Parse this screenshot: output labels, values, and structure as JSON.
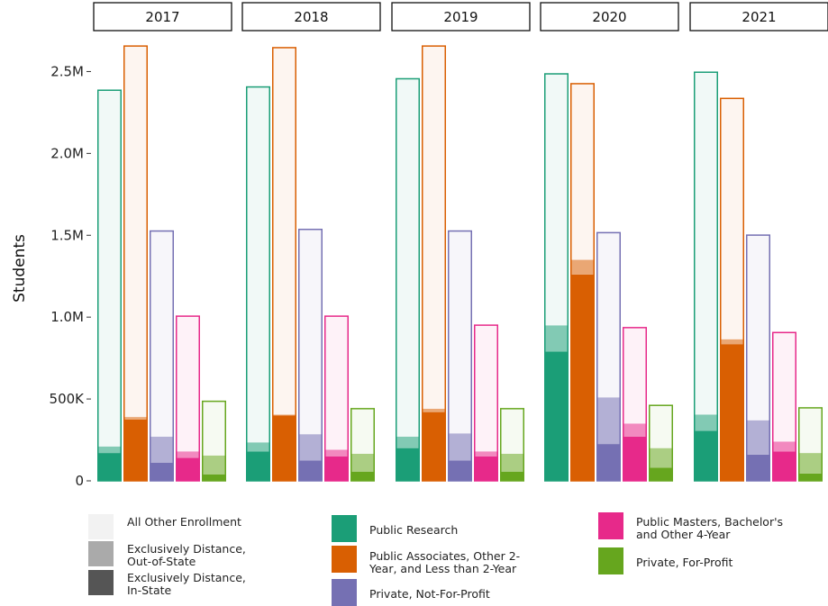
{
  "chart_data": {
    "type": "bar",
    "ylabel": "Students",
    "ylim": [
      0,
      2750000
    ],
    "yticks": [
      {
        "value": 0,
        "label": "0"
      },
      {
        "value": 500000,
        "label": "500K"
      },
      {
        "value": 1000000,
        "label": "1.0M"
      },
      {
        "value": 1500000,
        "label": "1.5M"
      },
      {
        "value": 2000000,
        "label": "2.0M"
      },
      {
        "value": 2500000,
        "label": "2.5M"
      }
    ],
    "facets": [
      "2017",
      "2018",
      "2019",
      "2020",
      "2021"
    ],
    "sectors": [
      {
        "name": "Public Research",
        "color": "#1b9e77"
      },
      {
        "name": "Public Associates, Other 2-Year, and Less than 2-Year",
        "color": "#d95f02"
      },
      {
        "name": "Private, Not-For-Profit",
        "color": "#7570b3"
      },
      {
        "name": "Public Masters, Bachelor's and Other 4-Year",
        "color": "#e7298a"
      },
      {
        "name": "Private, For-Profit",
        "color": "#66a61e"
      }
    ],
    "components": [
      {
        "name": "Exclusively Distance, In-State",
        "swatch": "#555555"
      },
      {
        "name": "Exclusively Distance, Out-of-State",
        "swatch": "#aaaaaa"
      },
      {
        "name": "All Other Enrollment",
        "swatch": "#f2f2f2"
      }
    ],
    "values": {
      "2017": [
        {
          "in_state": 170000,
          "out_of_state": 40000,
          "other": 2180000
        },
        {
          "in_state": 375000,
          "out_of_state": 15000,
          "other": 2270000
        },
        {
          "in_state": 110000,
          "out_of_state": 160000,
          "other": 1260000
        },
        {
          "in_state": 140000,
          "out_of_state": 40000,
          "other": 830000
        },
        {
          "in_state": 40000,
          "out_of_state": 115000,
          "other": 335000
        }
      ],
      "2018": [
        {
          "in_state": 180000,
          "out_of_state": 55000,
          "other": 2175000
        },
        {
          "in_state": 400000,
          "out_of_state": 5000,
          "other": 2245000
        },
        {
          "in_state": 125000,
          "out_of_state": 160000,
          "other": 1255000
        },
        {
          "in_state": 150000,
          "out_of_state": 40000,
          "other": 820000
        },
        {
          "in_state": 55000,
          "out_of_state": 110000,
          "other": 280000
        }
      ],
      "2019": [
        {
          "in_state": 200000,
          "out_of_state": 70000,
          "other": 2190000
        },
        {
          "in_state": 420000,
          "out_of_state": 20000,
          "other": 2220000
        },
        {
          "in_state": 125000,
          "out_of_state": 165000,
          "other": 1240000
        },
        {
          "in_state": 150000,
          "out_of_state": 30000,
          "other": 775000
        },
        {
          "in_state": 55000,
          "out_of_state": 110000,
          "other": 280000
        }
      ],
      "2020": [
        {
          "in_state": 790000,
          "out_of_state": 160000,
          "other": 1540000
        },
        {
          "in_state": 1260000,
          "out_of_state": 90000,
          "other": 1080000
        },
        {
          "in_state": 225000,
          "out_of_state": 285000,
          "other": 1010000
        },
        {
          "in_state": 270000,
          "out_of_state": 80000,
          "other": 590000
        },
        {
          "in_state": 80000,
          "out_of_state": 120000,
          "other": 265000
        }
      ],
      "2021": [
        {
          "in_state": 305000,
          "out_of_state": 100000,
          "other": 2095000
        },
        {
          "in_state": 835000,
          "out_of_state": 30000,
          "other": 1475000
        },
        {
          "in_state": 160000,
          "out_of_state": 210000,
          "other": 1135000
        },
        {
          "in_state": 180000,
          "out_of_state": 60000,
          "other": 670000
        },
        {
          "in_state": 45000,
          "out_of_state": 125000,
          "other": 280000
        }
      ]
    }
  }
}
